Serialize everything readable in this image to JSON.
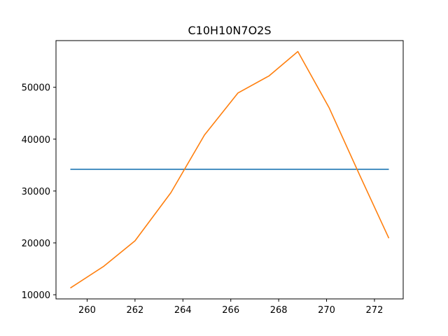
{
  "chart_data": {
    "type": "line",
    "title": "C10H10N7O2S",
    "xlabel": "",
    "ylabel": "",
    "xlim": [
      258.7,
      273.2
    ],
    "ylim": [
      9200,
      59000
    ],
    "xticks": [
      260,
      262,
      264,
      266,
      268,
      270,
      272
    ],
    "yticks": [
      10000,
      20000,
      30000,
      40000,
      50000
    ],
    "grid": false,
    "series": [
      {
        "color": "#1f77b4",
        "x": [
          259.3,
          272.6
        ],
        "y": [
          34200,
          34200
        ]
      },
      {
        "color": "#ff7f0e",
        "x": [
          259.3,
          260.7,
          262.0,
          263.5,
          264.9,
          266.3,
          267.6,
          268.8,
          270.1,
          271.4,
          272.6
        ],
        "y": [
          11300,
          15500,
          20400,
          29700,
          40800,
          48900,
          52200,
          56900,
          46100,
          32900,
          20900
        ]
      }
    ]
  }
}
